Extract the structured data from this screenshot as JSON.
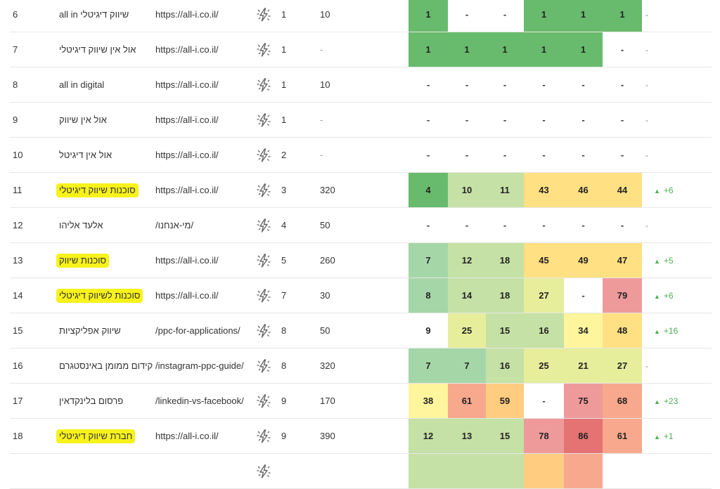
{
  "colors": {
    "none": "#ffffff",
    "dark_green": "#68bb6c",
    "light_green": "#a5d6a7",
    "pale_green": "#c5e1a5",
    "yellow_green": "#e6ee9c",
    "yellow": "#fff59d",
    "light_orange": "#ffe082",
    "orange": "#ffcc80",
    "salmon": "#f8a88c",
    "pink": "#ef9a9a",
    "red": "#e57373",
    "highlight": "#f7f21a",
    "up_arrow": "#4caf50"
  },
  "rows": [
    {
      "num": "6",
      "keyword": "שיווק דיגיטלי all in",
      "highlight": false,
      "url": "https://all-i.co.il/",
      "icon": "lightning-sparkle-icon",
      "position": "1",
      "volume": "10",
      "cells": [
        {
          "v": "1",
          "c": "dark_green"
        },
        {
          "v": "-",
          "c": "none"
        },
        {
          "v": "-",
          "c": "none"
        },
        {
          "v": "1",
          "c": "dark_green"
        },
        {
          "v": "1",
          "c": "dark_green"
        },
        {
          "v": "1",
          "c": "dark_green"
        }
      ],
      "change": "-",
      "up": false
    },
    {
      "num": "7",
      "keyword": "אול אין שיווק דיגיטלי",
      "highlight": false,
      "url": "https://all-i.co.il/",
      "icon": "lightning-sparkle-icon",
      "position": "1",
      "volume": "-",
      "cells": [
        {
          "v": "1",
          "c": "dark_green"
        },
        {
          "v": "1",
          "c": "dark_green"
        },
        {
          "v": "1",
          "c": "dark_green"
        },
        {
          "v": "1",
          "c": "dark_green"
        },
        {
          "v": "1",
          "c": "dark_green"
        },
        {
          "v": "-",
          "c": "none"
        }
      ],
      "change": "-",
      "up": false
    },
    {
      "num": "8",
      "keyword": "all in digital",
      "highlight": false,
      "url": "https://all-i.co.il/",
      "icon": "lightning-sparkle-icon",
      "position": "1",
      "volume": "10",
      "cells": [
        {
          "v": "-",
          "c": "none"
        },
        {
          "v": "-",
          "c": "none"
        },
        {
          "v": "-",
          "c": "none"
        },
        {
          "v": "-",
          "c": "none"
        },
        {
          "v": "-",
          "c": "none"
        },
        {
          "v": "-",
          "c": "none"
        }
      ],
      "change": "-",
      "up": false
    },
    {
      "num": "9",
      "keyword": "אול אין שיווק",
      "highlight": false,
      "url": "https://all-i.co.il/",
      "icon": "lightning-sparkle-icon",
      "position": "1",
      "volume": "-",
      "cells": [
        {
          "v": "-",
          "c": "none"
        },
        {
          "v": "-",
          "c": "none"
        },
        {
          "v": "-",
          "c": "none"
        },
        {
          "v": "-",
          "c": "none"
        },
        {
          "v": "-",
          "c": "none"
        },
        {
          "v": "-",
          "c": "none"
        }
      ],
      "change": "-",
      "up": false
    },
    {
      "num": "10",
      "keyword": "אול אין דיגיטל",
      "highlight": false,
      "url": "https://all-i.co.il/",
      "icon": "lightning-sparkle-icon",
      "position": "2",
      "volume": "-",
      "cells": [
        {
          "v": "-",
          "c": "none"
        },
        {
          "v": "-",
          "c": "none"
        },
        {
          "v": "-",
          "c": "none"
        },
        {
          "v": "-",
          "c": "none"
        },
        {
          "v": "-",
          "c": "none"
        },
        {
          "v": "-",
          "c": "none"
        }
      ],
      "change": "-",
      "up": false
    },
    {
      "num": "11",
      "keyword": "סוכנות שיווק דיגיטלי",
      "highlight": true,
      "url": "https://all-i.co.il/",
      "icon": "lightning-sparkle-icon",
      "position": "3",
      "volume": "320",
      "cells": [
        {
          "v": "4",
          "c": "dark_green"
        },
        {
          "v": "10",
          "c": "pale_green"
        },
        {
          "v": "11",
          "c": "pale_green"
        },
        {
          "v": "43",
          "c": "light_orange"
        },
        {
          "v": "46",
          "c": "light_orange"
        },
        {
          "v": "44",
          "c": "light_orange"
        }
      ],
      "change": "+6",
      "up": true
    },
    {
      "num": "12",
      "keyword": "אלעד אליהו",
      "highlight": false,
      "url": "/מי-אנחנו/",
      "icon": "lightning-sparkle-icon",
      "position": "4",
      "volume": "50",
      "cells": [
        {
          "v": "-",
          "c": "none"
        },
        {
          "v": "-",
          "c": "none"
        },
        {
          "v": "-",
          "c": "none"
        },
        {
          "v": "-",
          "c": "none"
        },
        {
          "v": "-",
          "c": "none"
        },
        {
          "v": "-",
          "c": "none"
        }
      ],
      "change": "-",
      "up": false
    },
    {
      "num": "13",
      "keyword": "סוכנות שיווק",
      "highlight": true,
      "url": "https://all-i.co.il/",
      "icon": "lightning-sparkle-icon",
      "position": "5",
      "volume": "260",
      "cells": [
        {
          "v": "7",
          "c": "light_green"
        },
        {
          "v": "12",
          "c": "pale_green"
        },
        {
          "v": "18",
          "c": "pale_green"
        },
        {
          "v": "45",
          "c": "light_orange"
        },
        {
          "v": "49",
          "c": "light_orange"
        },
        {
          "v": "47",
          "c": "light_orange"
        }
      ],
      "change": "+5",
      "up": true
    },
    {
      "num": "14",
      "keyword": "סוכנות לשיווק דיגיטלי",
      "highlight": true,
      "url": "https://all-i.co.il/",
      "icon": "lightning-sparkle-icon",
      "position": "7",
      "volume": "30",
      "cells": [
        {
          "v": "8",
          "c": "light_green"
        },
        {
          "v": "14",
          "c": "pale_green"
        },
        {
          "v": "18",
          "c": "pale_green"
        },
        {
          "v": "27",
          "c": "yellow_green"
        },
        {
          "v": "-",
          "c": "none"
        },
        {
          "v": "79",
          "c": "pink"
        }
      ],
      "change": "+6",
      "up": true
    },
    {
      "num": "15",
      "keyword": "שיווק אפליקציות",
      "highlight": false,
      "url": "/ppc-for-applications/",
      "icon": "lightning-sparkle-icon",
      "position": "8",
      "volume": "50",
      "cells": [
        {
          "v": "9",
          "c": "none"
        },
        {
          "v": "25",
          "c": "yellow_green"
        },
        {
          "v": "15",
          "c": "pale_green"
        },
        {
          "v": "16",
          "c": "pale_green"
        },
        {
          "v": "34",
          "c": "yellow"
        },
        {
          "v": "48",
          "c": "light_orange"
        }
      ],
      "change": "+16",
      "up": true
    },
    {
      "num": "16",
      "keyword": "קידום ממומן באינסטגרם",
      "highlight": false,
      "url": "/instagram-ppc-guide/",
      "icon": "lightning-sparkle-icon",
      "position": "8",
      "volume": "320",
      "cells": [
        {
          "v": "7",
          "c": "light_green"
        },
        {
          "v": "7",
          "c": "light_green"
        },
        {
          "v": "16",
          "c": "pale_green"
        },
        {
          "v": "25",
          "c": "yellow_green"
        },
        {
          "v": "21",
          "c": "yellow_green"
        },
        {
          "v": "27",
          "c": "yellow_green"
        }
      ],
      "change": "-",
      "up": false
    },
    {
      "num": "17",
      "keyword": "פרסום בלינקדאין",
      "highlight": false,
      "url": "/linkedin-vs-facebook/",
      "icon": "lightning-sparkle-icon",
      "position": "9",
      "volume": "170",
      "cells": [
        {
          "v": "38",
          "c": "yellow"
        },
        {
          "v": "61",
          "c": "salmon"
        },
        {
          "v": "59",
          "c": "orange"
        },
        {
          "v": "-",
          "c": "none"
        },
        {
          "v": "75",
          "c": "pink"
        },
        {
          "v": "68",
          "c": "salmon"
        }
      ],
      "change": "+23",
      "up": true
    },
    {
      "num": "18",
      "keyword": "חברת שיווק דיגיטלי",
      "highlight": true,
      "url": "https://all-i.co.il/",
      "icon": "lightning-sparkle-icon",
      "position": "9",
      "volume": "390",
      "cells": [
        {
          "v": "12",
          "c": "pale_green"
        },
        {
          "v": "13",
          "c": "pale_green"
        },
        {
          "v": "15",
          "c": "pale_green"
        },
        {
          "v": "78",
          "c": "pink"
        },
        {
          "v": "86",
          "c": "red"
        },
        {
          "v": "61",
          "c": "salmon"
        }
      ],
      "change": "+1",
      "up": true
    },
    {
      "num": "",
      "keyword": "",
      "highlight": false,
      "url": "",
      "icon": "lightning-sparkle-icon",
      "position": "",
      "volume": "",
      "cells": [
        {
          "v": "",
          "c": "pale_green"
        },
        {
          "v": "",
          "c": "pale_green"
        },
        {
          "v": "",
          "c": "pale_green"
        },
        {
          "v": "",
          "c": "orange"
        },
        {
          "v": "",
          "c": "salmon"
        },
        {
          "v": "",
          "c": "none"
        }
      ],
      "change": "",
      "up": false
    }
  ]
}
